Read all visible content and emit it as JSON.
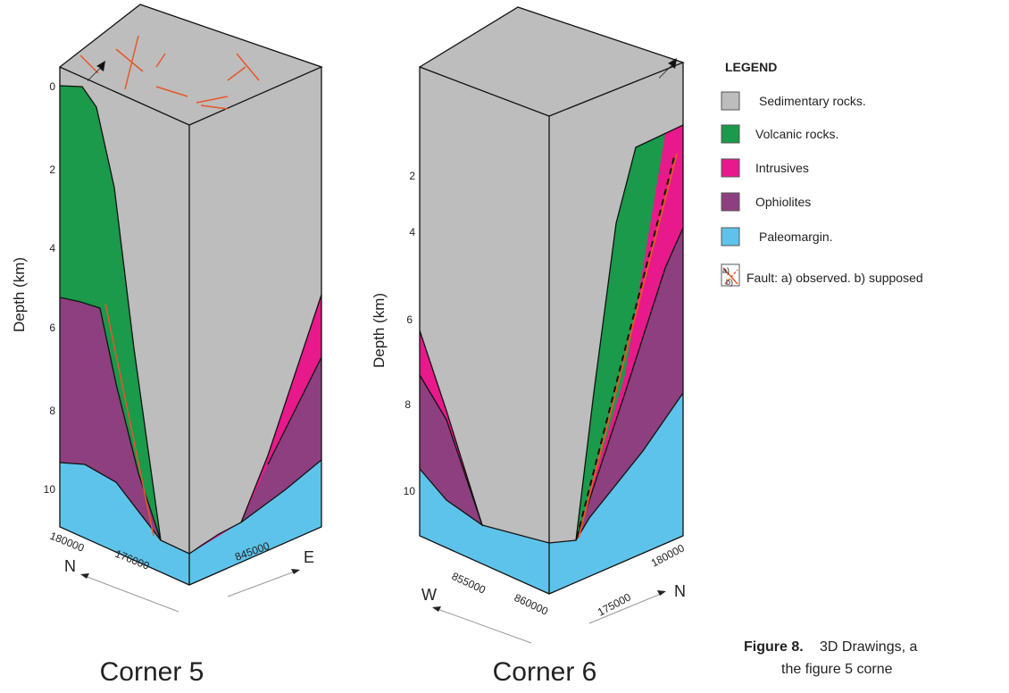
{
  "blocks": [
    {
      "title": "Corner 5",
      "axis_label": "Depth (km)",
      "depth_ticks": [
        "0",
        "2",
        "4",
        "6",
        "8",
        "10"
      ],
      "left_labels": [
        "180000",
        "N",
        "176000"
      ],
      "right_labels": [
        "845000",
        "E"
      ]
    },
    {
      "title": "Corner 6",
      "axis_label": "Depth (km)",
      "depth_ticks": [
        "2",
        "4",
        "6",
        "8",
        "10"
      ],
      "left_labels": [
        "W",
        "855000",
        "860000"
      ],
      "right_labels": [
        "175000",
        "180000",
        "N"
      ]
    }
  ],
  "legend": {
    "title": "LEGEND",
    "items": [
      "Sedimentary rocks.",
      "Volcanic rocks.",
      "Intrusives",
      "Ophiolites",
      "Paleomargin.",
      "Fault: a) observed. b) supposed"
    ],
    "fault_marks": [
      "a)",
      "b)"
    ]
  },
  "caption": {
    "label": "Figure 8.",
    "lines": [
      "3D Drawings, a",
      "the figure 5 corne"
    ]
  }
}
